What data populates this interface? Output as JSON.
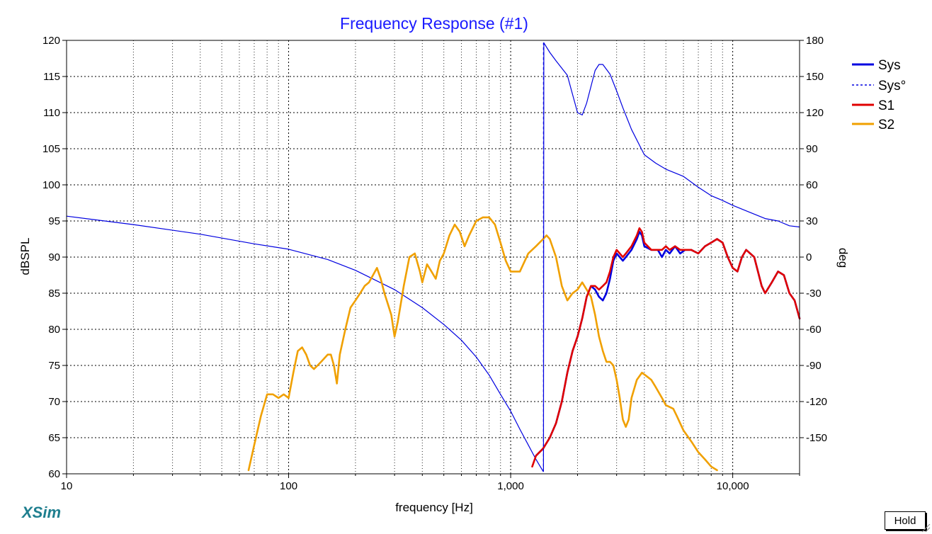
{
  "app": {
    "brand": "XSim",
    "hold_label": "Hold"
  },
  "chart_data": {
    "type": "line",
    "title": "Frequency Response (#1)",
    "xlabel": "frequency [Hz]",
    "ylabel": "dBSPL",
    "y2label": "deg",
    "xscale": "log",
    "xlim": [
      10,
      20000
    ],
    "ylim": [
      60,
      120
    ],
    "y2lim": [
      -180,
      180
    ],
    "x_ticks": [
      {
        "value": 10,
        "label": "10"
      },
      {
        "value": 100,
        "label": "100"
      },
      {
        "value": 1000,
        "label": "1,000"
      },
      {
        "value": 10000,
        "label": "10,000"
      }
    ],
    "y_ticks": [
      60,
      65,
      70,
      75,
      80,
      85,
      90,
      95,
      100,
      105,
      110,
      115,
      120
    ],
    "y2_ticks": [
      -150,
      -120,
      -90,
      -60,
      -30,
      0,
      30,
      60,
      90,
      120,
      150,
      180
    ],
    "grid": true,
    "legend_position": "top-right",
    "colors": {
      "sys": "#0000e0",
      "s1": "#e00000",
      "s2": "#f0a000",
      "title": "#1a1aff"
    },
    "series": [
      {
        "name": "Sys",
        "axis": "left",
        "style": "solid",
        "color": "#0000e0",
        "points": [
          [
            1300,
            62.5
          ],
          [
            1400,
            63.5
          ],
          [
            1500,
            65
          ],
          [
            1600,
            67
          ],
          [
            1700,
            70
          ],
          [
            1800,
            74
          ],
          [
            1900,
            77
          ],
          [
            2000,
            79
          ],
          [
            2100,
            81.5
          ],
          [
            2200,
            84.5
          ],
          [
            2300,
            86
          ],
          [
            2400,
            85.5
          ],
          [
            2500,
            84.5
          ],
          [
            2600,
            84
          ],
          [
            2700,
            85
          ],
          [
            2800,
            87
          ],
          [
            2900,
            89.5
          ],
          [
            3000,
            90.5
          ],
          [
            3100,
            90
          ],
          [
            3200,
            89.5
          ],
          [
            3300,
            90
          ],
          [
            3500,
            91
          ],
          [
            3700,
            92.5
          ],
          [
            3800,
            93.5
          ],
          [
            3900,
            93
          ],
          [
            4000,
            91.5
          ],
          [
            4300,
            91
          ],
          [
            4600,
            91
          ],
          [
            4800,
            90
          ],
          [
            5000,
            91
          ],
          [
            5200,
            90.5
          ],
          [
            5500,
            91.5
          ],
          [
            5800,
            90.5
          ],
          [
            6100,
            91
          ],
          [
            6500,
            91
          ],
          [
            7000,
            90.5
          ],
          [
            7500,
            91.5
          ],
          [
            8000,
            92
          ],
          [
            8500,
            92.5
          ],
          [
            9000,
            92
          ],
          [
            9500,
            90
          ],
          [
            10000,
            88.5
          ],
          [
            10500,
            88
          ],
          [
            11000,
            90
          ],
          [
            11500,
            91
          ],
          [
            12500,
            90
          ],
          [
            13500,
            86
          ],
          [
            14000,
            85
          ],
          [
            15000,
            86.5
          ],
          [
            16000,
            88
          ],
          [
            17000,
            87.5
          ],
          [
            18000,
            85
          ],
          [
            19000,
            84
          ],
          [
            20000,
            81.5
          ]
        ]
      },
      {
        "name": "Sys°",
        "axis": "right",
        "style": "dashed",
        "color": "#0000e0",
        "points": [
          [
            10,
            34
          ],
          [
            20,
            27
          ],
          [
            40,
            19
          ],
          [
            70,
            11
          ],
          [
            100,
            6.5
          ],
          [
            150,
            -2
          ],
          [
            200,
            -11
          ],
          [
            300,
            -27
          ],
          [
            400,
            -42
          ],
          [
            500,
            -56
          ],
          [
            600,
            -69
          ],
          [
            700,
            -83
          ],
          [
            800,
            -98
          ],
          [
            900,
            -114
          ],
          [
            1000,
            -128
          ],
          [
            1100,
            -143
          ],
          [
            1200,
            -156
          ],
          [
            1300,
            -168
          ],
          [
            1400,
            -178
          ],
          [
            1405,
            -178
          ],
          [
            1410,
            178
          ],
          [
            1500,
            170
          ],
          [
            1600,
            163
          ],
          [
            1800,
            151
          ],
          [
            1900,
            135
          ],
          [
            2000,
            120
          ],
          [
            2100,
            118
          ],
          [
            2200,
            128
          ],
          [
            2400,
            155
          ],
          [
            2500,
            160
          ],
          [
            2600,
            160
          ],
          [
            2800,
            152
          ],
          [
            3000,
            138
          ],
          [
            3200,
            124
          ],
          [
            3500,
            106
          ],
          [
            4000,
            85
          ],
          [
            4500,
            78
          ],
          [
            5000,
            73
          ],
          [
            6000,
            67
          ],
          [
            7000,
            58
          ],
          [
            8000,
            51
          ],
          [
            9000,
            47
          ],
          [
            10000,
            43
          ],
          [
            12000,
            37
          ],
          [
            14000,
            32
          ],
          [
            16000,
            30
          ],
          [
            18000,
            26
          ],
          [
            20000,
            25
          ]
        ]
      },
      {
        "name": "S1",
        "axis": "left",
        "style": "solid",
        "color": "#e00000",
        "points": [
          [
            1250,
            61
          ],
          [
            1300,
            62.5
          ],
          [
            1400,
            63.5
          ],
          [
            1500,
            65
          ],
          [
            1600,
            67
          ],
          [
            1700,
            70
          ],
          [
            1800,
            74
          ],
          [
            1900,
            77
          ],
          [
            2000,
            79
          ],
          [
            2100,
            81.5
          ],
          [
            2200,
            84.5
          ],
          [
            2300,
            86
          ],
          [
            2400,
            86
          ],
          [
            2500,
            85.5
          ],
          [
            2600,
            86
          ],
          [
            2700,
            86.5
          ],
          [
            2800,
            88
          ],
          [
            2900,
            90
          ],
          [
            3000,
            91
          ],
          [
            3100,
            90.5
          ],
          [
            3200,
            90
          ],
          [
            3300,
            90.5
          ],
          [
            3500,
            91.5
          ],
          [
            3700,
            93
          ],
          [
            3800,
            94
          ],
          [
            3900,
            93.5
          ],
          [
            4000,
            92
          ],
          [
            4300,
            91
          ],
          [
            4600,
            91
          ],
          [
            4800,
            91
          ],
          [
            5000,
            91.5
          ],
          [
            5200,
            91
          ],
          [
            5500,
            91.5
          ],
          [
            5800,
            91
          ],
          [
            6100,
            91
          ],
          [
            6500,
            91
          ],
          [
            7000,
            90.5
          ],
          [
            7500,
            91.5
          ],
          [
            8000,
            92
          ],
          [
            8500,
            92.5
          ],
          [
            9000,
            92
          ],
          [
            9500,
            90
          ],
          [
            10000,
            88.5
          ],
          [
            10500,
            88
          ],
          [
            11000,
            90
          ],
          [
            11500,
            91
          ],
          [
            12500,
            90
          ],
          [
            13500,
            86
          ],
          [
            14000,
            85
          ],
          [
            15000,
            86.5
          ],
          [
            16000,
            88
          ],
          [
            17000,
            87.5
          ],
          [
            18000,
            85
          ],
          [
            19000,
            84
          ],
          [
            20000,
            81.5
          ]
        ]
      },
      {
        "name": "S2",
        "axis": "left",
        "style": "solid",
        "color": "#f0a000",
        "points": [
          [
            66,
            60.5
          ],
          [
            70,
            64
          ],
          [
            75,
            68
          ],
          [
            80,
            71
          ],
          [
            85,
            71
          ],
          [
            90,
            70.5
          ],
          [
            95,
            71
          ],
          [
            100,
            70.5
          ],
          [
            105,
            74
          ],
          [
            110,
            77
          ],
          [
            115,
            77.5
          ],
          [
            120,
            76.5
          ],
          [
            125,
            75
          ],
          [
            130,
            74.5
          ],
          [
            135,
            75
          ],
          [
            140,
            75.5
          ],
          [
            145,
            76
          ],
          [
            150,
            76.5
          ],
          [
            155,
            76.5
          ],
          [
            160,
            75
          ],
          [
            165,
            72.5
          ],
          [
            170,
            76.5
          ],
          [
            180,
            80
          ],
          [
            190,
            83
          ],
          [
            200,
            84
          ],
          [
            210,
            85
          ],
          [
            220,
            86
          ],
          [
            230,
            86.5
          ],
          [
            240,
            87.5
          ],
          [
            250,
            88.5
          ],
          [
            260,
            87
          ],
          [
            270,
            85
          ],
          [
            280,
            83.5
          ],
          [
            290,
            82
          ],
          [
            300,
            79
          ],
          [
            310,
            81
          ],
          [
            330,
            86
          ],
          [
            350,
            90
          ],
          [
            370,
            90.5
          ],
          [
            390,
            88
          ],
          [
            400,
            86.5
          ],
          [
            420,
            89
          ],
          [
            440,
            88
          ],
          [
            460,
            87
          ],
          [
            480,
            89.5
          ],
          [
            500,
            90.5
          ],
          [
            530,
            93
          ],
          [
            560,
            94.5
          ],
          [
            590,
            93.5
          ],
          [
            620,
            91.5
          ],
          [
            650,
            93
          ],
          [
            700,
            95
          ],
          [
            750,
            95.5
          ],
          [
            800,
            95.5
          ],
          [
            850,
            94.5
          ],
          [
            900,
            92
          ],
          [
            950,
            89.5
          ],
          [
            1000,
            88
          ],
          [
            1100,
            88
          ],
          [
            1200,
            90.5
          ],
          [
            1300,
            91.5
          ],
          [
            1400,
            92.5
          ],
          [
            1450,
            93
          ],
          [
            1500,
            92.5
          ],
          [
            1600,
            90
          ],
          [
            1700,
            86
          ],
          [
            1800,
            84
          ],
          [
            1900,
            85
          ],
          [
            2000,
            85.5
          ],
          [
            2100,
            86.5
          ],
          [
            2200,
            85.5
          ],
          [
            2300,
            84.5
          ],
          [
            2400,
            82
          ],
          [
            2500,
            79
          ],
          [
            2600,
            77
          ],
          [
            2700,
            75.5
          ],
          [
            2800,
            75.5
          ],
          [
            2900,
            75
          ],
          [
            3000,
            73
          ],
          [
            3100,
            70.5
          ],
          [
            3200,
            67.5
          ],
          [
            3300,
            66.5
          ],
          [
            3400,
            67.5
          ],
          [
            3500,
            70.5
          ],
          [
            3700,
            73
          ],
          [
            3900,
            74
          ],
          [
            4100,
            73.5
          ],
          [
            4300,
            73
          ],
          [
            4500,
            72
          ],
          [
            4800,
            70.5
          ],
          [
            5000,
            69.5
          ],
          [
            5400,
            69
          ],
          [
            5600,
            68
          ],
          [
            6000,
            66
          ],
          [
            6500,
            64.5
          ],
          [
            7000,
            63
          ],
          [
            7500,
            62
          ],
          [
            8000,
            61
          ],
          [
            8500,
            60.5
          ]
        ]
      }
    ]
  }
}
